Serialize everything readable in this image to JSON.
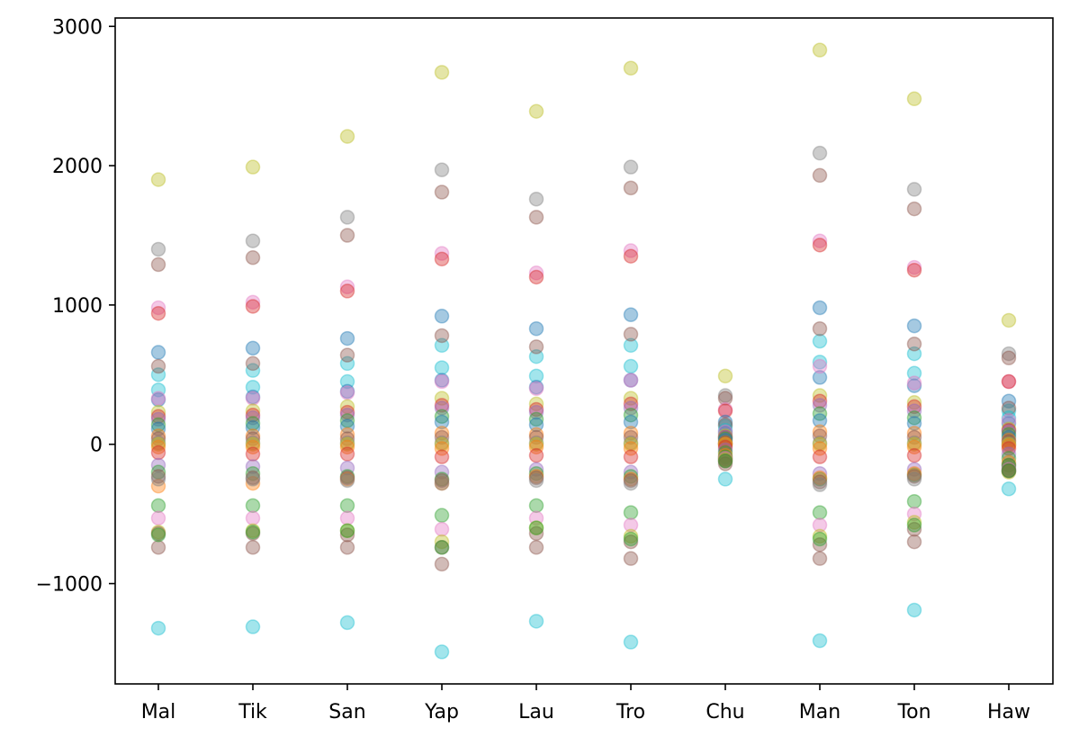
{
  "chart_data": {
    "type": "scatter",
    "title": "",
    "xlabel": "",
    "ylabel": "",
    "categories": [
      "Mal",
      "Tik",
      "San",
      "Yap",
      "Lau",
      "Tro",
      "Chu",
      "Man",
      "Ton",
      "Haw"
    ],
    "yticks": [
      -1000,
      0,
      1000,
      2000,
      3000
    ],
    "ytick_labels": [
      "−1000",
      "0",
      "1000",
      "2000",
      "3000"
    ],
    "ylim": [
      -1720,
      3060
    ],
    "grid": false,
    "marker_alpha": 0.4,
    "series": [
      {
        "color": "#bcbd22",
        "values": [
          1900,
          1990,
          2210,
          2670,
          2390,
          2700,
          490,
          2830,
          2480,
          890
        ]
      },
      {
        "color": "#7f7f7f",
        "values": [
          1400,
          1460,
          1630,
          1970,
          1760,
          1990,
          350,
          2090,
          1830,
          650
        ]
      },
      {
        "color": "#8c564b",
        "values": [
          1290,
          1340,
          1500,
          1810,
          1630,
          1840,
          330,
          1930,
          1690,
          620
        ]
      },
      {
        "color": "#e377c2",
        "values": [
          980,
          1020,
          1130,
          1370,
          1230,
          1390,
          250,
          1460,
          1270,
          450
        ]
      },
      {
        "color": "#d62728",
        "values": [
          940,
          990,
          1100,
          1330,
          1200,
          1350,
          240,
          1430,
          1250,
          450
        ]
      },
      {
        "color": "#1f77b4",
        "values": [
          660,
          690,
          760,
          920,
          830,
          930,
          160,
          980,
          850,
          310
        ]
      },
      {
        "color": "#17becf",
        "values": [
          500,
          530,
          580,
          710,
          630,
          710,
          130,
          740,
          650,
          240
        ]
      },
      {
        "color": "#8c564b",
        "values": [
          560,
          580,
          640,
          780,
          700,
          790,
          140,
          830,
          720,
          260
        ]
      },
      {
        "color": "#17becf",
        "values": [
          390,
          410,
          450,
          550,
          490,
          560,
          100,
          590,
          510,
          190
        ]
      },
      {
        "color": "#1f77b4",
        "values": [
          320,
          340,
          380,
          460,
          410,
          460,
          80,
          480,
          420,
          150
        ]
      },
      {
        "color": "#e377c2",
        "values": [
          330,
          330,
          370,
          450,
          400,
          460,
          90,
          560,
          440,
          170
        ]
      },
      {
        "color": "#bcbd22",
        "values": [
          230,
          240,
          270,
          330,
          290,
          330,
          60,
          350,
          300,
          110
        ]
      },
      {
        "color": "#d62728",
        "values": [
          200,
          210,
          230,
          280,
          250,
          290,
          50,
          310,
          270,
          100
        ]
      },
      {
        "color": "#9467bd",
        "values": [
          180,
          190,
          210,
          260,
          230,
          260,
          50,
          280,
          240,
          90
        ]
      },
      {
        "color": "#2ca02c",
        "values": [
          140,
          150,
          170,
          200,
          180,
          210,
          40,
          220,
          190,
          70
        ]
      },
      {
        "color": "#1f77b4",
        "values": [
          110,
          120,
          130,
          160,
          140,
          160,
          30,
          170,
          150,
          50
        ]
      },
      {
        "color": "#ff7f0e",
        "values": [
          60,
          60,
          70,
          80,
          70,
          80,
          10,
          90,
          80,
          30
        ]
      },
      {
        "color": "#8c564b",
        "values": [
          40,
          40,
          40,
          50,
          50,
          50,
          10,
          60,
          50,
          20
        ]
      },
      {
        "color": "#7f7f7f",
        "values": [
          10,
          10,
          10,
          10,
          10,
          10,
          0,
          10,
          10,
          0
        ]
      },
      {
        "color": "#bcbd22",
        "values": [
          0,
          0,
          0,
          0,
          0,
          0,
          0,
          0,
          0,
          0
        ]
      },
      {
        "color": "#ff7f0e",
        "values": [
          -20,
          -20,
          -20,
          -30,
          -20,
          -30,
          0,
          -30,
          -20,
          -10
        ]
      },
      {
        "color": "#d62728",
        "values": [
          -60,
          -70,
          -70,
          -90,
          -80,
          -90,
          -20,
          -90,
          -80,
          -30
        ]
      },
      {
        "color": "#9467bd",
        "values": [
          -150,
          -160,
          -170,
          -200,
          -180,
          -200,
          -40,
          -210,
          -180,
          -70
        ]
      },
      {
        "color": "#2ca02c",
        "values": [
          -200,
          -210,
          -230,
          -250,
          -210,
          -230,
          -60,
          -250,
          -220,
          -100
        ]
      },
      {
        "color": "#ff7f0e",
        "values": [
          -300,
          -280,
          -250,
          -280,
          -230,
          -250,
          -80,
          -240,
          -210,
          -130
        ]
      },
      {
        "color": "#8c564b",
        "values": [
          -230,
          -240,
          -240,
          -260,
          -240,
          -260,
          -100,
          -270,
          -230,
          -150
        ]
      },
      {
        "color": "#7f7f7f",
        "values": [
          -250,
          -250,
          -260,
          -280,
          -260,
          -280,
          -110,
          -290,
          -250,
          -170
        ]
      },
      {
        "color": "#17becf",
        "values": [
          -1320,
          -1310,
          -1280,
          -1490,
          -1270,
          -1420,
          -250,
          -1410,
          -1190,
          -320
        ]
      },
      {
        "color": "#2ca02c",
        "values": [
          -440,
          -440,
          -440,
          -510,
          -440,
          -490,
          -90,
          -490,
          -410,
          -150
        ]
      },
      {
        "color": "#e377c2",
        "values": [
          -530,
          -530,
          -530,
          -610,
          -530,
          -580,
          -100,
          -580,
          -500,
          -180
        ]
      },
      {
        "color": "#bcbd22",
        "values": [
          -630,
          -620,
          -620,
          -700,
          -600,
          -660,
          -110,
          -660,
          -560,
          -200
        ]
      },
      {
        "color": "#8c564b",
        "values": [
          -640,
          -640,
          -650,
          -740,
          -640,
          -700,
          -120,
          -720,
          -610,
          -190
        ]
      },
      {
        "color": "#8c564b",
        "values": [
          -740,
          -740,
          -740,
          -860,
          -740,
          -820,
          -140,
          -820,
          -700,
          -190
        ]
      },
      {
        "color": "#2ca02c",
        "values": [
          -650,
          -630,
          -620,
          -740,
          -600,
          -680,
          -120,
          -680,
          -580,
          -190
        ]
      }
    ]
  }
}
